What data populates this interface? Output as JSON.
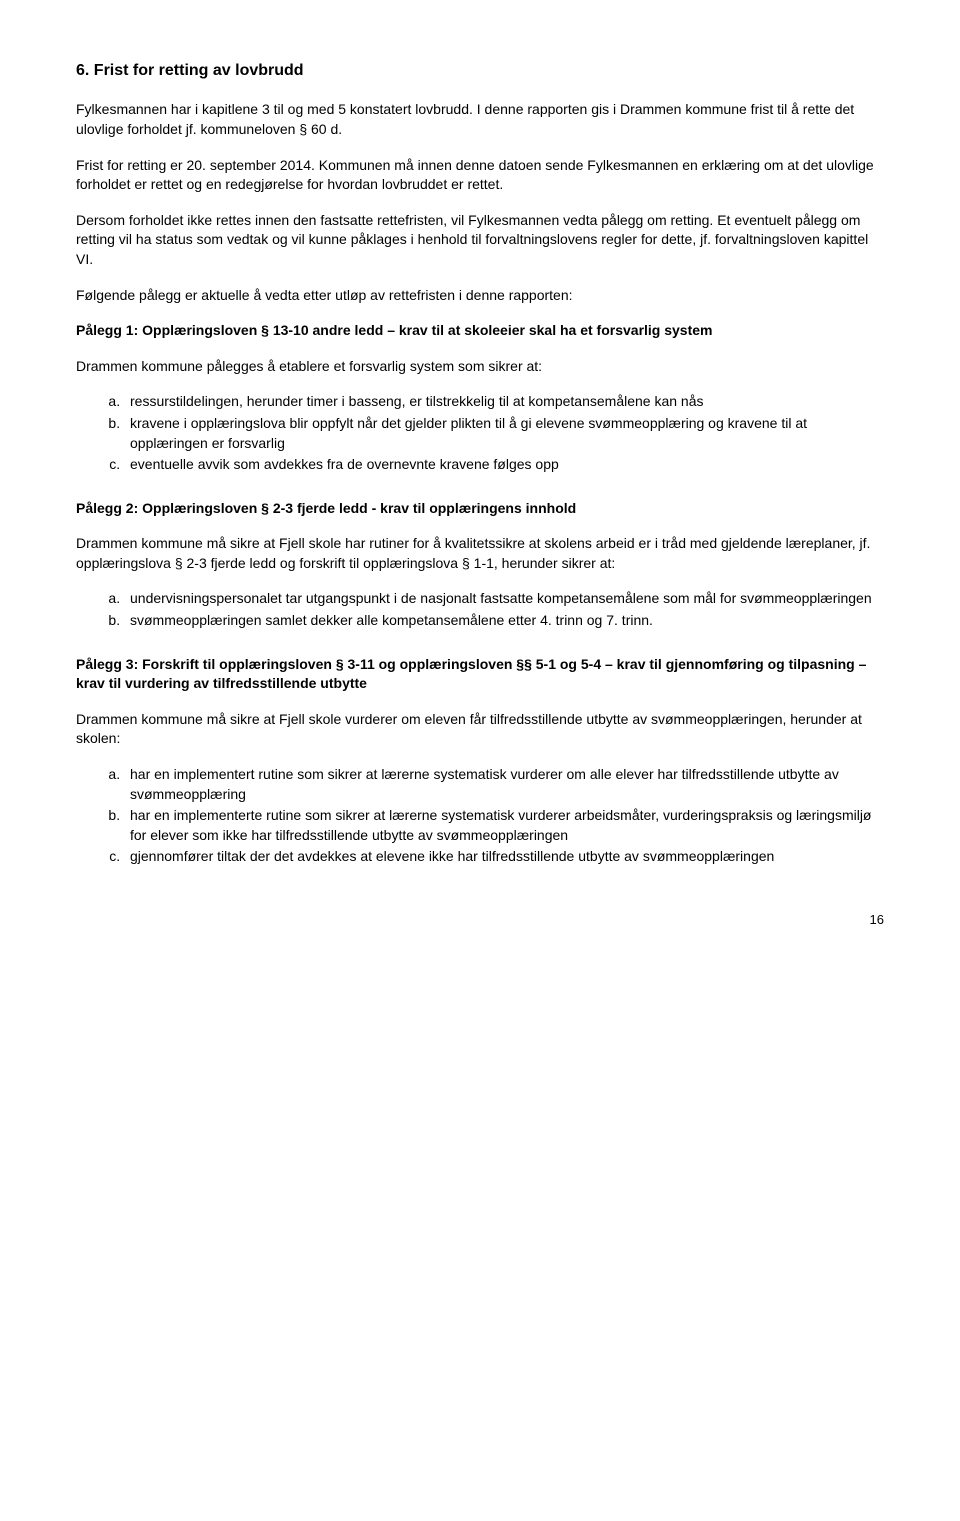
{
  "heading": "6. Frist for retting av lovbrudd",
  "p1": "Fylkesmannen har i kapitlene 3 til og med 5 konstatert lovbrudd. I denne rapporten gis i Drammen kommune frist til å rette det ulovlige forholdet jf. kommuneloven § 60 d.",
  "p2": "Frist for retting er 20. september 2014. Kommunen må innen denne datoen sende Fylkesmannen en erklæring om at det ulovlige forholdet er rettet og en redegjørelse for hvordan lovbruddet er rettet.",
  "p3": "Dersom forholdet ikke rettes innen den fastsatte rettefristen, vil Fylkesmannen vedta pålegg om retting. Et eventuelt pålegg om retting vil ha status som vedtak og vil kunne påklages i henhold til forvaltningslovens regler for dette, jf. forvaltningsloven kapittel VI.",
  "p4": "Følgende pålegg er aktuelle å vedta etter utløp av rettefristen i denne rapporten:",
  "order1_title": "Pålegg 1: Opplæringsloven § 13-10 andre ledd – krav til at skoleeier skal ha et forsvarlig system",
  "order1_intro": "Drammen kommune pålegges å etablere et forsvarlig system som sikrer at:",
  "order1_items": [
    "ressurstildelingen, herunder timer i basseng, er tilstrekkelig til at kompetansemålene kan nås",
    "kravene i opplæringslova blir oppfylt når det gjelder plikten til å gi elevene svømmeopplæring og kravene til at opplæringen er forsvarlig",
    "eventuelle avvik som avdekkes fra de overnevnte kravene følges opp"
  ],
  "order2_title": "Pålegg 2: Opplæringsloven § 2-3 fjerde ledd - krav til opplæringens innhold",
  "order2_intro": "Drammen kommune må sikre at Fjell skole har rutiner for å kvalitetssikre at skolens arbeid er i tråd med gjeldende læreplaner, jf. opplæringslova § 2-3 fjerde ledd og forskrift til opplæringslova § 1-1, herunder sikrer at:",
  "order2_items": [
    "undervisningspersonalet tar utgangspunkt i de nasjonalt fastsatte kompetansemålene som mål for svømmeopplæringen",
    "svømmeopplæringen samlet dekker alle kompetansemålene etter 4. trinn og 7. trinn."
  ],
  "order3_title": "Pålegg 3: Forskrift til opplæringsloven § 3-11 og opplæringsloven §§ 5-1 og 5-4 – krav til gjennomføring og tilpasning – krav til vurdering av tilfredsstillende utbytte",
  "order3_intro": "Drammen kommune må sikre at Fjell skole vurderer om eleven får tilfredsstillende utbytte av svømmeopplæringen, herunder at skolen:",
  "order3_items": [
    "har en implementert rutine som sikrer at lærerne systematisk vurderer om alle elever har tilfredsstillende utbytte av svømmeopplæring",
    "har en implementerte rutine som sikrer at lærerne systematisk vurderer arbeidsmåter, vurderingspraksis og læringsmiljø for elever som ikke har tilfredsstillende utbytte av svømmeopplæringen",
    "gjennomfører tiltak der det avdekkes at elevene ikke har tilfredsstillende utbytte av svømmeopplæringen"
  ],
  "page_num": "16"
}
